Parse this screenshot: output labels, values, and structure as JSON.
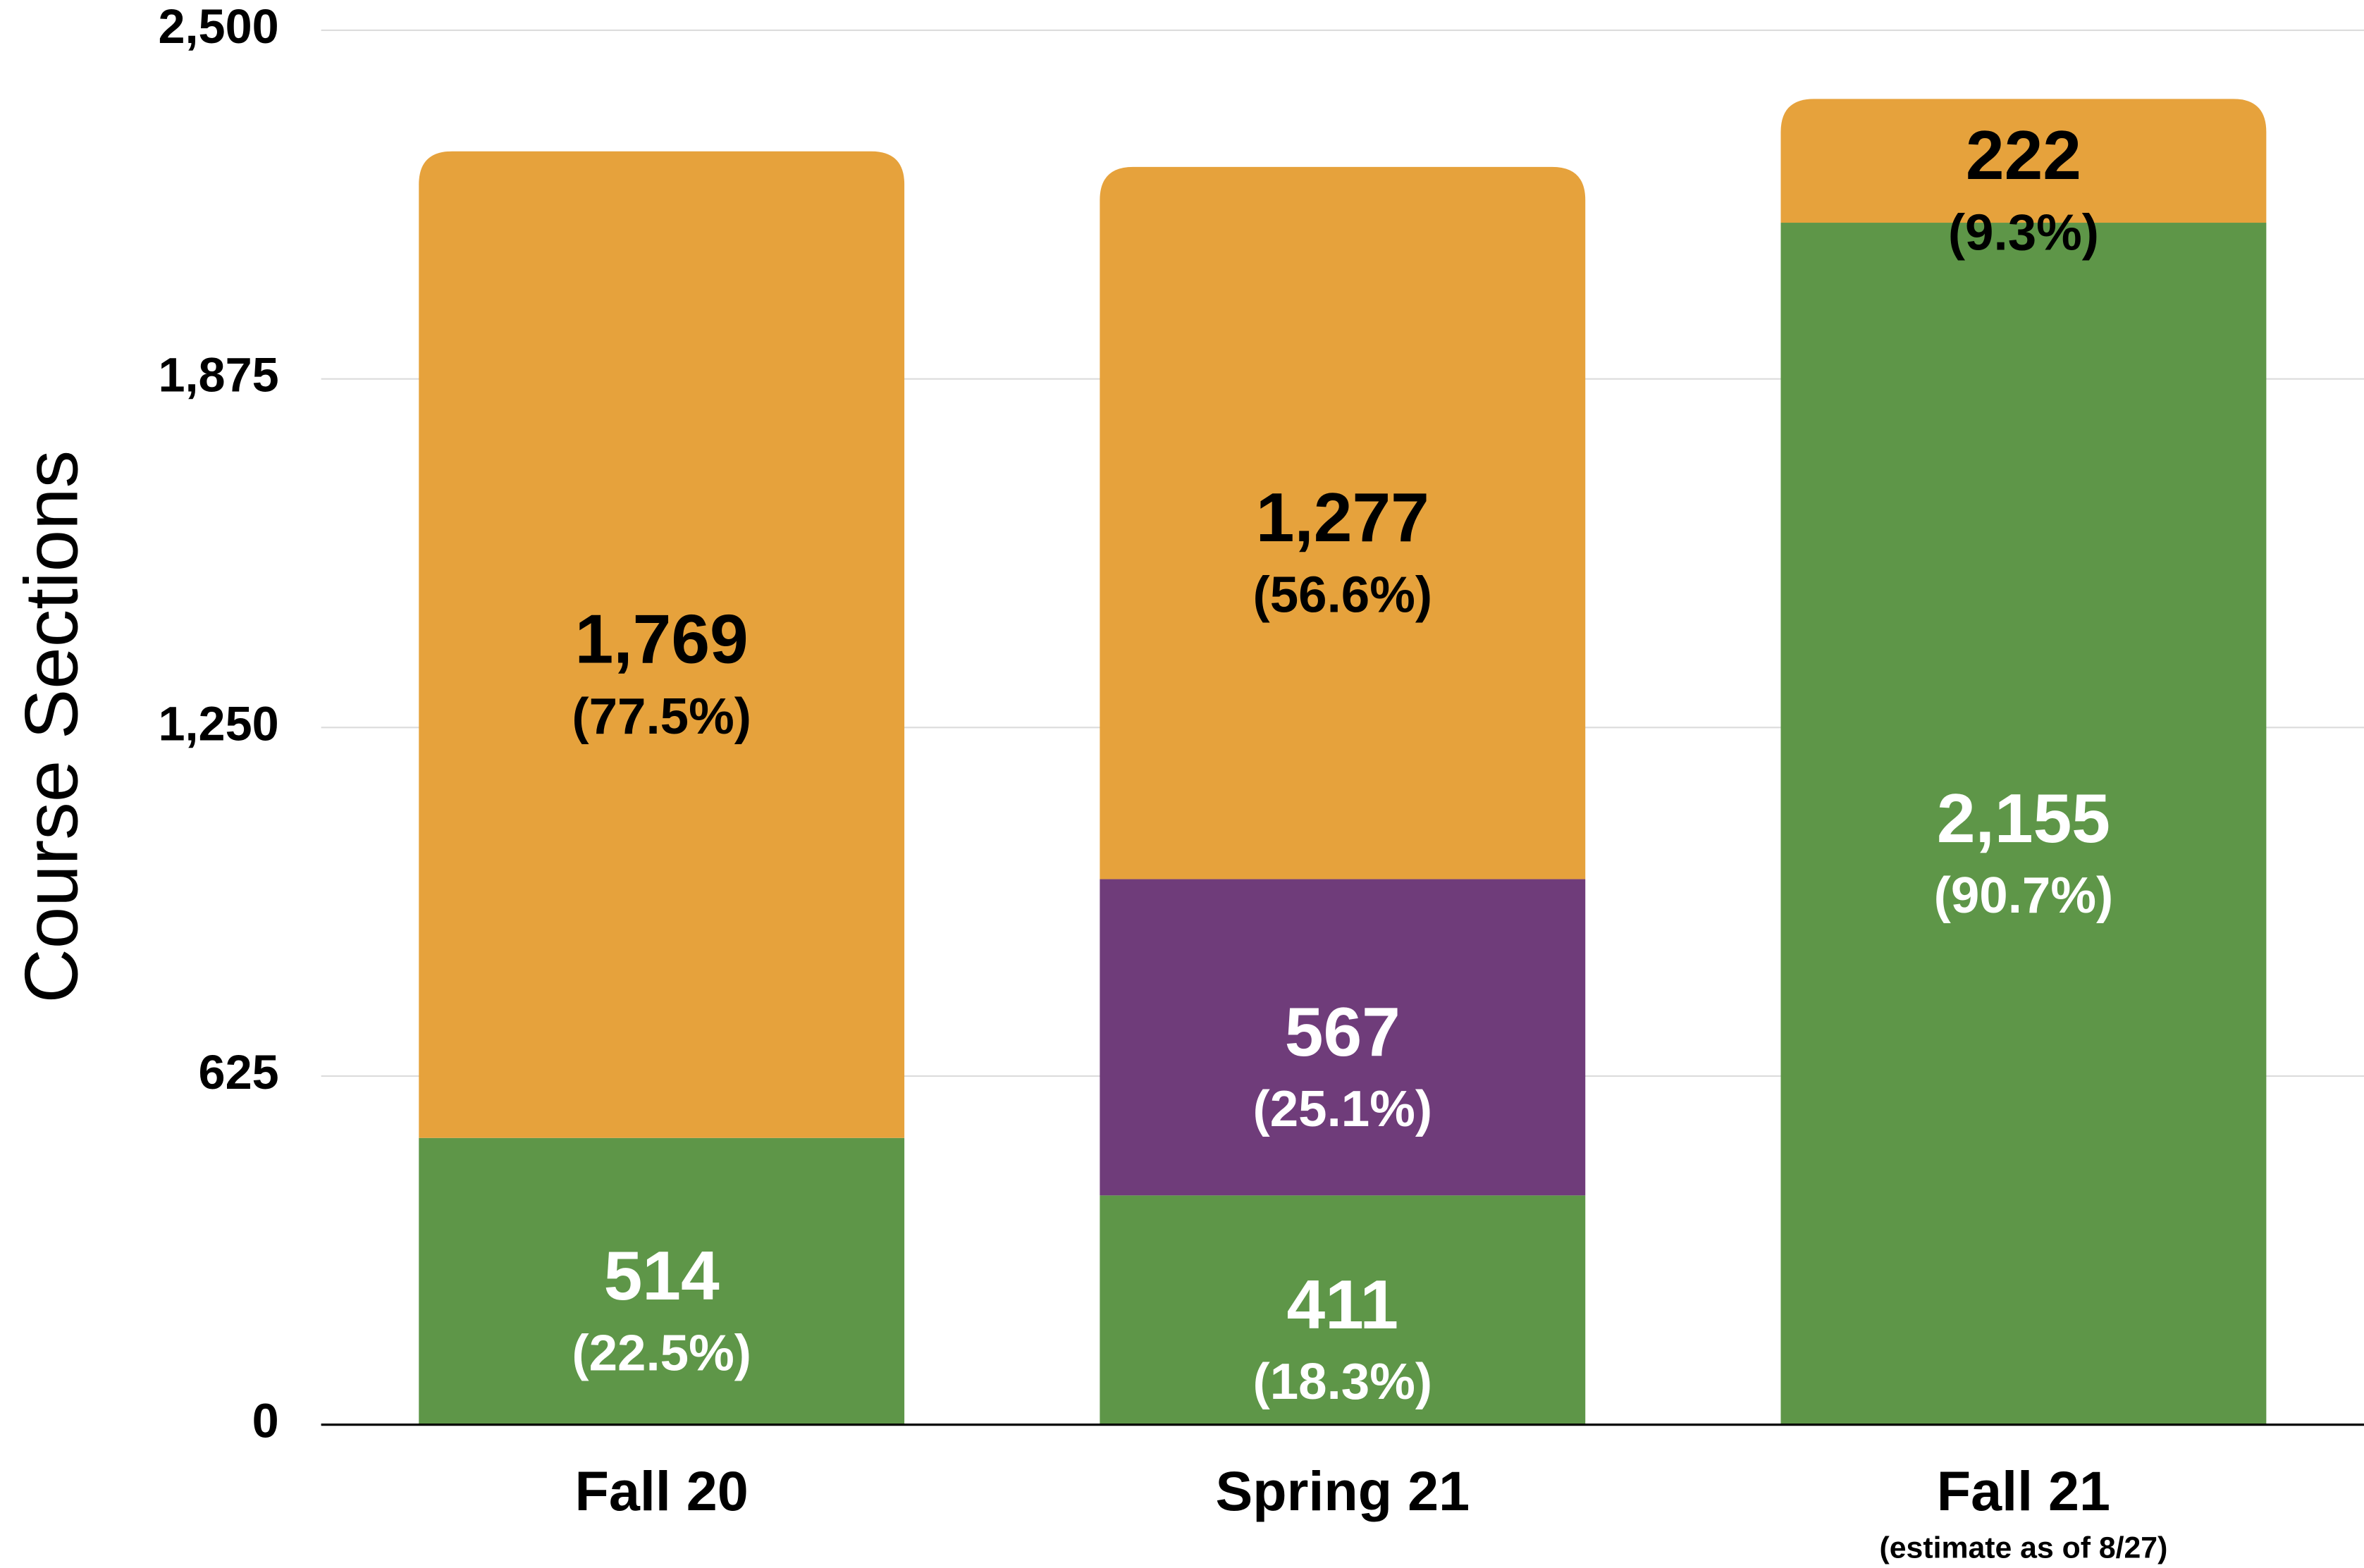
{
  "chart_data": {
    "type": "stacked_bar",
    "y_label": "Course Sections",
    "categories": [
      "Fall 20",
      "Spring 21",
      "Fall 21"
    ],
    "category_notes": [
      null,
      null,
      "(estimate as of 8/27)"
    ],
    "series": [
      {
        "color": "#5e9648",
        "label_color": "#ffffff",
        "values": [
          514,
          411,
          2155
        ],
        "value_labels": [
          "514",
          "411",
          "2,155"
        ],
        "percent_labels": [
          "(22.5%)",
          "(18.3%)",
          "(90.7%)"
        ]
      },
      {
        "color": "#6f3c7a",
        "label_color": "#ffffff",
        "values": [
          null,
          567,
          null
        ],
        "value_labels": [
          null,
          "567",
          null
        ],
        "percent_labels": [
          null,
          "(25.1%)",
          null
        ]
      },
      {
        "color": "#e6a23c",
        "label_color": "#000000",
        "values": [
          1769,
          1277,
          222
        ],
        "value_labels": [
          "1,769",
          "1,277",
          "222"
        ],
        "percent_labels": [
          "(77.5%)",
          "(56.6%)",
          "(9.3%)"
        ]
      }
    ],
    "ylim": [
      0,
      2500
    ],
    "yticks": [
      0,
      625,
      {
        "value": 1250,
        "label": "1,250"
      },
      {
        "value": 1875,
        "label": "1,875"
      },
      {
        "value": 2500,
        "label": "2,500"
      }
    ],
    "grid": true
  }
}
